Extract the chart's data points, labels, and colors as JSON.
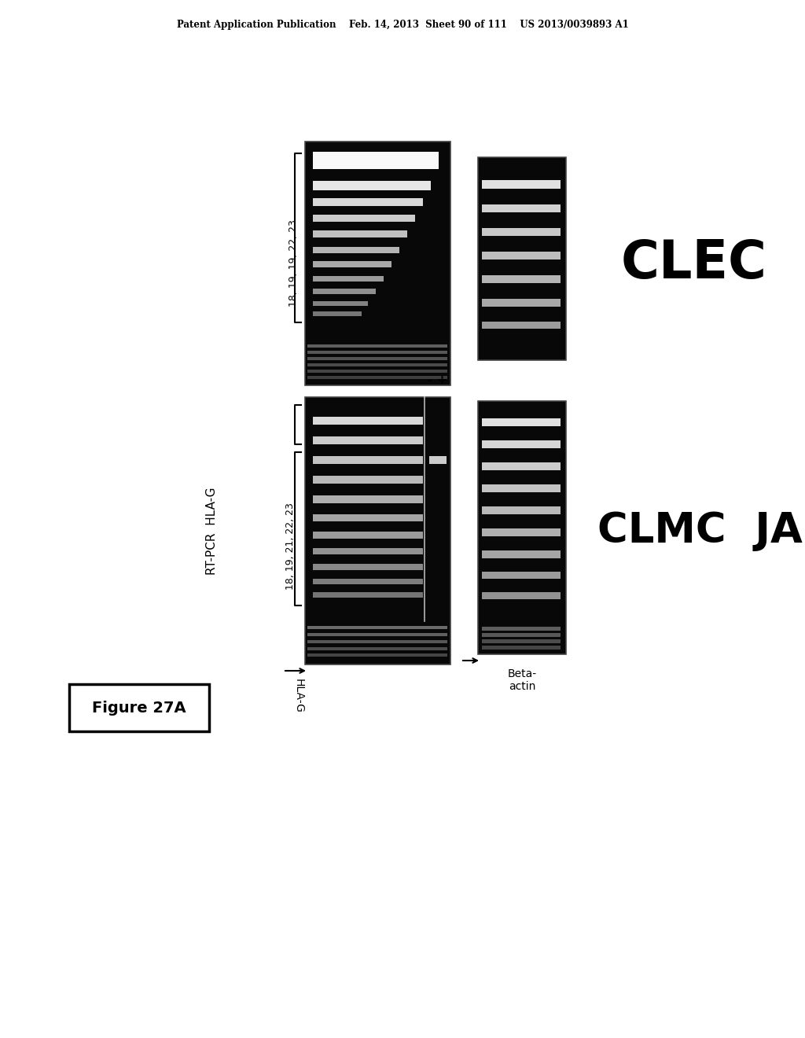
{
  "header": "Patent Application Publication    Feb. 14, 2013  Sheet 90 of 111    US 2013/0039893 A1",
  "figure_label": "Figure 27A",
  "rt_pcr_label": "RT-PCR  HLA-G",
  "clec_label": "CLEC",
  "clmc_jar_label": "CLMC  JAR",
  "clec_x_label": "18, 19, 19, 22, 23",
  "clmc_x_label": "18, 19, 21, 22, 23",
  "jar_label": "- +",
  "hla_g_label": "HLA-G",
  "beta_actin_label": "Beta-\nactin",
  "bg_color": "#ffffff"
}
